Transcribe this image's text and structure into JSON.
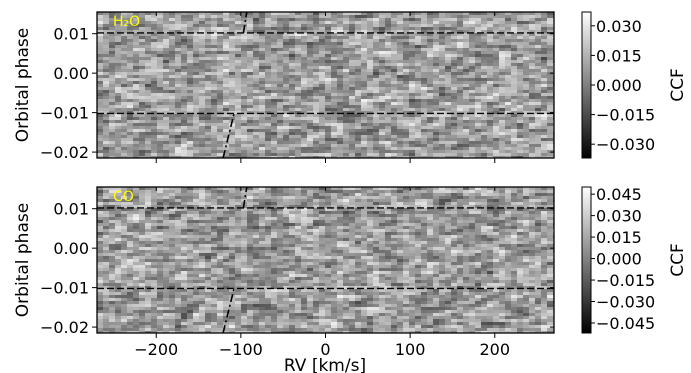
{
  "chart_data": [
    {
      "type": "heatmap",
      "panel_label": "H₂O",
      "ylabel": "Orbital phase",
      "xlabel": "",
      "xlim": [
        -270,
        270
      ],
      "ylim": [
        -0.0215,
        0.0155
      ],
      "xticks": [
        -200,
        -100,
        0,
        100,
        200
      ],
      "xtick_labels": [
        "",
        "",
        "",
        "",
        ""
      ],
      "yticks": [
        0.01,
        0.0,
        -0.01,
        -0.02
      ],
      "ytick_labels": [
        "0.01",
        "0.00",
        "−0.01",
        "−0.02"
      ],
      "colorbar": {
        "label": "CCF",
        "range": [
          -0.037,
          0.037
        ],
        "ticks": [
          0.03,
          0.015,
          0.0,
          -0.015,
          -0.03
        ],
        "tick_labels": [
          "0.030",
          "0.015",
          "0.000",
          "−0.015",
          "−0.030"
        ]
      },
      "hlines": [
        0.0102,
        -0.0102
      ],
      "planet_trail": [
        [
          -121,
          -0.0215
        ],
        [
          -108,
          -0.0102
        ],
        [
          -97,
          0.0102
        ],
        [
          -93,
          0.0155
        ]
      ],
      "colormap": "gray"
    },
    {
      "type": "heatmap",
      "panel_label": "CO",
      "ylabel": "Orbital phase",
      "xlabel": "RV [km/s]",
      "xlim": [
        -270,
        270
      ],
      "ylim": [
        -0.0215,
        0.0155
      ],
      "xticks": [
        -200,
        -100,
        0,
        100,
        200
      ],
      "xtick_labels": [
        "−200",
        "−100",
        "0",
        "100",
        "200"
      ],
      "yticks": [
        0.01,
        0.0,
        -0.01,
        -0.02
      ],
      "ytick_labels": [
        "0.01",
        "0.00",
        "−0.01",
        "−0.02"
      ],
      "colorbar": {
        "label": "CCF",
        "range": [
          -0.052,
          0.05
        ],
        "ticks": [
          0.045,
          0.03,
          0.015,
          0.0,
          -0.015,
          -0.03,
          -0.045
        ],
        "tick_labels": [
          "0.045",
          "0.030",
          "0.015",
          "0.000",
          "−0.015",
          "−0.030",
          "−0.045"
        ]
      },
      "hlines": [
        0.0102,
        -0.0102
      ],
      "planet_trail": [
        [
          -121,
          -0.0215
        ],
        [
          -108,
          -0.0102
        ],
        [
          -97,
          0.0102
        ],
        [
          -93,
          0.0155
        ]
      ],
      "colormap": "gray"
    }
  ],
  "colors": {
    "panel_label": "#ffff00",
    "axis": "#000000",
    "line": "#000000"
  }
}
